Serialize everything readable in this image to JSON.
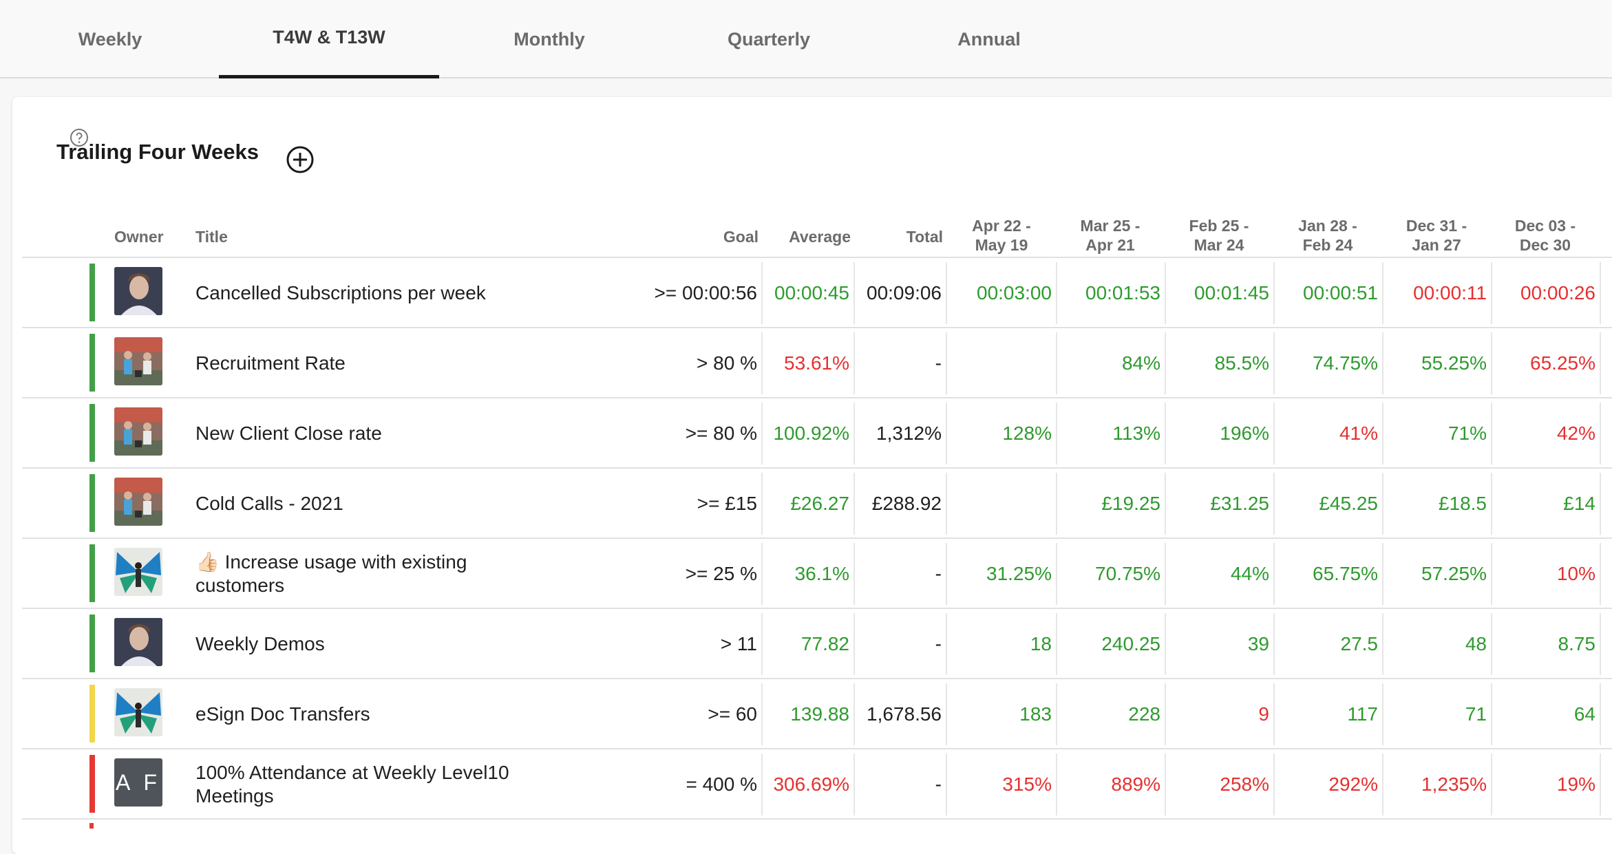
{
  "tabs": [
    {
      "label": "Weekly",
      "active": false
    },
    {
      "label": "T4W & T13W",
      "active": true
    },
    {
      "label": "Monthly",
      "active": false
    },
    {
      "label": "Quarterly",
      "active": false
    },
    {
      "label": "Annual",
      "active": false
    }
  ],
  "section": {
    "title": "Trailing Four Weeks",
    "add_icon": "plus-circle-icon"
  },
  "columns": {
    "help_icon": "question-circle-icon",
    "owner": "Owner",
    "title": "Title",
    "goal": "Goal",
    "average": "Average",
    "total": "Total",
    "periods": [
      {
        "line1": "Apr 22 -",
        "line2": "May 19"
      },
      {
        "line1": "Mar 25 -",
        "line2": "Apr 21"
      },
      {
        "line1": "Feb 25 -",
        "line2": "Mar 24"
      },
      {
        "line1": "Jan 28 -",
        "line2": "Feb 24"
      },
      {
        "line1": "Dec 31 -",
        "line2": "Jan 27"
      },
      {
        "line1": "Dec 03 -",
        "line2": "Dec 30"
      }
    ]
  },
  "colors": {
    "green": "#2e9a2e",
    "red": "#e53030",
    "yellow": "#f2d64b",
    "status_green": "#43a047",
    "status_red": "#e53935"
  },
  "rows": [
    {
      "status": "green",
      "owner": "photo-man",
      "title": "Cancelled Subscriptions per week",
      "goal": ">= 00:00:56",
      "average": {
        "v": "00:00:45",
        "c": "green"
      },
      "total": "00:09:06",
      "periods": [
        {
          "v": "00:03:00",
          "c": "green"
        },
        {
          "v": "00:01:53",
          "c": "green"
        },
        {
          "v": "00:01:45",
          "c": "green"
        },
        {
          "v": "00:00:51",
          "c": "green"
        },
        {
          "v": "00:00:11",
          "c": "red"
        },
        {
          "v": "00:00:26",
          "c": "red"
        }
      ]
    },
    {
      "status": "green",
      "owner": "photo-group",
      "title": "Recruitment Rate",
      "goal": "> 80 %",
      "average": {
        "v": "53.61%",
        "c": "red"
      },
      "total": "-",
      "periods": [
        {
          "v": "",
          "c": "green"
        },
        {
          "v": "84%",
          "c": "green"
        },
        {
          "v": "85.5%",
          "c": "green"
        },
        {
          "v": "74.75%",
          "c": "green"
        },
        {
          "v": "55.25%",
          "c": "green"
        },
        {
          "v": "65.25%",
          "c": "red"
        }
      ]
    },
    {
      "status": "green",
      "owner": "photo-group",
      "title": "New Client Close rate",
      "goal": ">= 80 %",
      "average": {
        "v": "100.92%",
        "c": "green"
      },
      "total": "1,312%",
      "periods": [
        {
          "v": "128%",
          "c": "green"
        },
        {
          "v": "113%",
          "c": "green"
        },
        {
          "v": "196%",
          "c": "green"
        },
        {
          "v": "41%",
          "c": "red"
        },
        {
          "v": "71%",
          "c": "green"
        },
        {
          "v": "42%",
          "c": "red"
        }
      ]
    },
    {
      "status": "green",
      "owner": "photo-group",
      "title": "Cold Calls - 2021",
      "goal": ">= £15",
      "average": {
        "v": "£26.27",
        "c": "green"
      },
      "total": "£288.92",
      "periods": [
        {
          "v": "",
          "c": "green"
        },
        {
          "v": "£19.25",
          "c": "green"
        },
        {
          "v": "£31.25",
          "c": "green"
        },
        {
          "v": "£45.25",
          "c": "green"
        },
        {
          "v": "£18.5",
          "c": "green"
        },
        {
          "v": "£14",
          "c": "green"
        }
      ]
    },
    {
      "status": "green",
      "owner": "photo-butterfly",
      "title": "👍🏻 Increase usage with existing customers",
      "goal": ">= 25 %",
      "average": {
        "v": "36.1%",
        "c": "green"
      },
      "total": "-",
      "periods": [
        {
          "v": "31.25%",
          "c": "green"
        },
        {
          "v": "70.75%",
          "c": "green"
        },
        {
          "v": "44%",
          "c": "green"
        },
        {
          "v": "65.75%",
          "c": "green"
        },
        {
          "v": "57.25%",
          "c": "green"
        },
        {
          "v": "10%",
          "c": "red"
        }
      ]
    },
    {
      "status": "green",
      "owner": "photo-man",
      "title": "Weekly Demos",
      "goal": "> 11",
      "average": {
        "v": "77.82",
        "c": "green"
      },
      "total": "-",
      "periods": [
        {
          "v": "18",
          "c": "green"
        },
        {
          "v": "240.25",
          "c": "green"
        },
        {
          "v": "39",
          "c": "green"
        },
        {
          "v": "27.5",
          "c": "green"
        },
        {
          "v": "48",
          "c": "green"
        },
        {
          "v": "8.75",
          "c": "green"
        }
      ]
    },
    {
      "status": "yellow",
      "owner": "photo-butterfly",
      "title": "eSign Doc Transfers",
      "goal": ">= 60",
      "average": {
        "v": "139.88",
        "c": "green"
      },
      "total": "1,678.56",
      "periods": [
        {
          "v": "183",
          "c": "green"
        },
        {
          "v": "228",
          "c": "green"
        },
        {
          "v": "9",
          "c": "red"
        },
        {
          "v": "117",
          "c": "green"
        },
        {
          "v": "71",
          "c": "green"
        },
        {
          "v": "64",
          "c": "green"
        }
      ]
    },
    {
      "status": "red",
      "owner": "initials",
      "initials": "A F",
      "title": "100% Attendance at Weekly Level10 Meetings",
      "goal": "= 400 %",
      "average": {
        "v": "306.69%",
        "c": "red"
      },
      "total": "-",
      "periods": [
        {
          "v": "315%",
          "c": "red"
        },
        {
          "v": "889%",
          "c": "red"
        },
        {
          "v": "258%",
          "c": "red"
        },
        {
          "v": "292%",
          "c": "red"
        },
        {
          "v": "1,235%",
          "c": "red"
        },
        {
          "v": "19%",
          "c": "red"
        }
      ]
    }
  ]
}
